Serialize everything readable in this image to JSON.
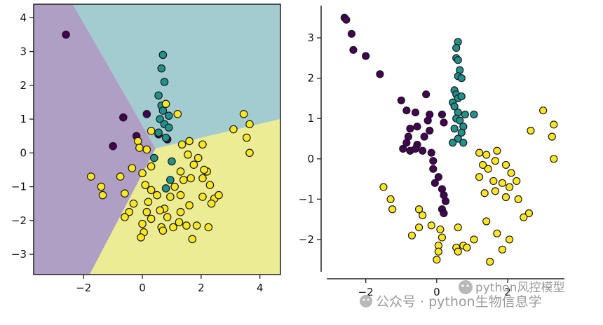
{
  "chart_data": [
    {
      "type": "scatter",
      "title": "",
      "xlabel": "",
      "ylabel": "",
      "xlim": [
        -3.7,
        4.7
      ],
      "ylim": [
        -3.6,
        4.4
      ],
      "grid": false,
      "decision_regions": true,
      "colors": {
        "purple": "#440154",
        "teal": "#21918c",
        "yellow": "#fde725"
      },
      "x_ticks": [
        -2,
        0,
        2,
        4
      ],
      "y_ticks": [
        -3,
        -2,
        -1,
        0,
        1,
        2,
        3,
        4
      ],
      "series": [
        {
          "class": "purple",
          "points": [
            [
              -2.6,
              3.5
            ],
            [
              -0.65,
              1.05
            ],
            [
              0.15,
              1.15
            ],
            [
              -1.0,
              0.2
            ],
            [
              -0.2,
              0.5
            ],
            [
              0.55,
              0.55
            ],
            [
              0.85,
              0.4
            ]
          ]
        },
        {
          "class": "teal",
          "points": [
            [
              0.7,
              2.9
            ],
            [
              0.65,
              2.5
            ],
            [
              0.75,
              2.1
            ],
            [
              0.55,
              1.7
            ],
            [
              0.65,
              1.4
            ],
            [
              0.7,
              1.25
            ],
            [
              0.9,
              1.1
            ],
            [
              0.6,
              1.0
            ],
            [
              0.75,
              0.85
            ],
            [
              0.9,
              0.75
            ],
            [
              0.55,
              0.6
            ],
            [
              0.8,
              0.45
            ],
            [
              0.4,
              -0.15
            ],
            [
              1.0,
              -0.25
            ],
            [
              0.95,
              -0.8
            ],
            [
              0.8,
              -1.05
            ]
          ]
        },
        {
          "class": "yellow",
          "points": [
            [
              0.8,
              1.45
            ],
            [
              1.2,
              1.15
            ],
            [
              0.3,
              0.65
            ],
            [
              -0.15,
              0.35
            ],
            [
              -0.1,
              0.15
            ],
            [
              0.15,
              0.1
            ],
            [
              1.35,
              0.25
            ],
            [
              1.6,
              0.35
            ],
            [
              2.05,
              0.25
            ],
            [
              3.1,
              0.7
            ],
            [
              3.45,
              1.15
            ],
            [
              3.65,
              0.85
            ],
            [
              3.55,
              0.45
            ],
            [
              3.65,
              0.0
            ],
            [
              -1.75,
              -0.7
            ],
            [
              -1.4,
              -1.0
            ],
            [
              -1.35,
              -1.25
            ],
            [
              -0.75,
              -0.7
            ],
            [
              -0.35,
              -0.45
            ],
            [
              -0.6,
              -1.2
            ],
            [
              -0.3,
              -1.5
            ],
            [
              -0.45,
              -1.75
            ],
            [
              -0.6,
              -1.9
            ],
            [
              0.0,
              -0.6
            ],
            [
              0.3,
              -0.4
            ],
            [
              0.1,
              -0.95
            ],
            [
              0.3,
              -1.1
            ],
            [
              0.5,
              -1.25
            ],
            [
              0.2,
              -1.45
            ],
            [
              0.15,
              -1.75
            ],
            [
              0.3,
              -1.95
            ],
            [
              0.0,
              -2.1
            ],
            [
              0.05,
              -2.35
            ],
            [
              -0.05,
              -2.5
            ],
            [
              0.65,
              -2.2
            ],
            [
              0.7,
              -2.3
            ],
            [
              0.85,
              -1.9
            ],
            [
              0.75,
              -1.65
            ],
            [
              0.95,
              -1.3
            ],
            [
              1.1,
              -1.0
            ],
            [
              1.3,
              -0.55
            ],
            [
              1.4,
              -0.8
            ],
            [
              1.65,
              -0.75
            ],
            [
              1.75,
              -0.35
            ],
            [
              1.55,
              -0.05
            ],
            [
              1.9,
              -0.15
            ],
            [
              2.05,
              -0.75
            ],
            [
              2.2,
              -0.55
            ],
            [
              2.1,
              -0.5
            ],
            [
              2.3,
              -0.95
            ],
            [
              2.05,
              -1.3
            ],
            [
              2.45,
              -1.35
            ],
            [
              2.35,
              -1.5
            ],
            [
              2.6,
              -1.25
            ],
            [
              1.3,
              -1.25
            ],
            [
              1.6,
              -1.55
            ],
            [
              1.3,
              -1.75
            ],
            [
              1.25,
              -2.05
            ],
            [
              1.05,
              -2.2
            ],
            [
              1.5,
              -2.15
            ],
            [
              1.85,
              -2.15
            ],
            [
              2.25,
              -2.2
            ],
            [
              1.7,
              -2.55
            ],
            [
              0.6,
              -1.7
            ]
          ]
        }
      ]
    },
    {
      "type": "scatter",
      "title": "",
      "xlabel": "",
      "ylabel": "",
      "xlim": [
        -3.1,
        3.6
      ],
      "ylim": [
        -2.8,
        3.8
      ],
      "grid": false,
      "colors": {
        "purple": "#440154",
        "teal": "#21918c",
        "yellow": "#fde725"
      },
      "x_ticks": [
        -2,
        0,
        2
      ],
      "y_ticks": [
        -2,
        -1,
        0,
        1,
        2,
        3
      ],
      "series": [
        {
          "class": "purple",
          "points": [
            [
              -2.6,
              3.5
            ],
            [
              -2.55,
              3.45
            ],
            [
              -2.4,
              3.1
            ],
            [
              -2.35,
              2.7
            ],
            [
              -2.0,
              2.55
            ],
            [
              -1.6,
              2.1
            ],
            [
              -1.0,
              1.45
            ],
            [
              -0.3,
              1.6
            ],
            [
              -0.85,
              1.2
            ],
            [
              -0.6,
              1.15
            ],
            [
              -0.2,
              1.1
            ],
            [
              -0.25,
              0.95
            ],
            [
              0.15,
              1.1
            ],
            [
              0.2,
              0.9
            ],
            [
              -0.55,
              0.8
            ],
            [
              -0.75,
              0.75
            ],
            [
              -0.8,
              0.55
            ],
            [
              -0.2,
              0.7
            ],
            [
              -0.35,
              0.55
            ],
            [
              -0.55,
              0.35
            ],
            [
              -0.85,
              0.4
            ],
            [
              -0.95,
              0.25
            ],
            [
              -0.75,
              0.2
            ],
            [
              -0.6,
              0.25
            ],
            [
              -0.4,
              0.2
            ],
            [
              -0.15,
              0.15
            ],
            [
              -0.1,
              -0.05
            ],
            [
              -0.1,
              -0.25
            ],
            [
              0.05,
              -0.45
            ],
            [
              -0.05,
              -0.6
            ],
            [
              0.15,
              -0.75
            ],
            [
              0.2,
              -0.9
            ],
            [
              0.25,
              -1.05
            ],
            [
              0.15,
              -1.25
            ],
            [
              0.2,
              -1.35
            ]
          ]
        },
        {
          "class": "teal",
          "points": [
            [
              0.6,
              2.9
            ],
            [
              0.55,
              2.75
            ],
            [
              0.55,
              2.5
            ],
            [
              0.6,
              2.45
            ],
            [
              0.65,
              2.2
            ],
            [
              0.6,
              2.05
            ],
            [
              0.7,
              2.0
            ],
            [
              0.5,
              1.7
            ],
            [
              0.55,
              1.6
            ],
            [
              0.6,
              1.5
            ],
            [
              0.7,
              1.55
            ],
            [
              0.45,
              1.4
            ],
            [
              0.5,
              1.3
            ],
            [
              0.8,
              1.1
            ],
            [
              0.6,
              1.15
            ],
            [
              1.05,
              1.1
            ],
            [
              0.55,
              1.0
            ],
            [
              0.65,
              0.95
            ],
            [
              0.75,
              0.8
            ],
            [
              0.5,
              0.75
            ],
            [
              0.7,
              0.65
            ],
            [
              0.6,
              0.5
            ],
            [
              0.75,
              0.4
            ],
            [
              0.45,
              0.4
            ]
          ]
        },
        {
          "class": "yellow",
          "points": [
            [
              3.0,
              1.2
            ],
            [
              3.3,
              0.85
            ],
            [
              3.25,
              0.55
            ],
            [
              3.3,
              0.0
            ],
            [
              2.65,
              0.7
            ],
            [
              1.2,
              0.15
            ],
            [
              1.4,
              0.1
            ],
            [
              1.7,
              0.2
            ],
            [
              1.3,
              -0.15
            ],
            [
              1.45,
              -0.25
            ],
            [
              1.65,
              -0.05
            ],
            [
              1.95,
              -0.15
            ],
            [
              1.2,
              -0.45
            ],
            [
              1.6,
              -0.55
            ],
            [
              1.85,
              -0.6
            ],
            [
              2.1,
              -0.35
            ],
            [
              2.25,
              -0.55
            ],
            [
              1.35,
              -0.85
            ],
            [
              1.65,
              -0.8
            ],
            [
              1.95,
              -0.95
            ],
            [
              2.05,
              -0.7
            ],
            [
              2.3,
              -1.0
            ],
            [
              2.6,
              -1.35
            ],
            [
              2.45,
              -1.45
            ],
            [
              -1.5,
              -0.7
            ],
            [
              -1.3,
              -1.0
            ],
            [
              -1.25,
              -1.25
            ],
            [
              -0.5,
              -1.25
            ],
            [
              -0.4,
              -1.4
            ],
            [
              -0.5,
              -1.7
            ],
            [
              -0.7,
              -1.9
            ],
            [
              -0.15,
              -1.65
            ],
            [
              0.1,
              -1.75
            ],
            [
              0.6,
              -1.7
            ],
            [
              0.15,
              -1.95
            ],
            [
              0.05,
              -2.15
            ],
            [
              0.05,
              -2.3
            ],
            [
              0.0,
              -2.5
            ],
            [
              0.55,
              -2.2
            ],
            [
              0.6,
              -2.3
            ],
            [
              0.75,
              -2.15
            ],
            [
              0.85,
              -2.2
            ],
            [
              1.05,
              -2.0
            ],
            [
              1.4,
              -1.55
            ],
            [
              1.7,
              -1.85
            ],
            [
              1.85,
              -2.25
            ],
            [
              2.05,
              -2.0
            ],
            [
              1.5,
              -2.55
            ]
          ]
        }
      ]
    }
  ],
  "watermark": {
    "line1": "python风控模型",
    "line2": "公众号 · python生物信息学"
  }
}
